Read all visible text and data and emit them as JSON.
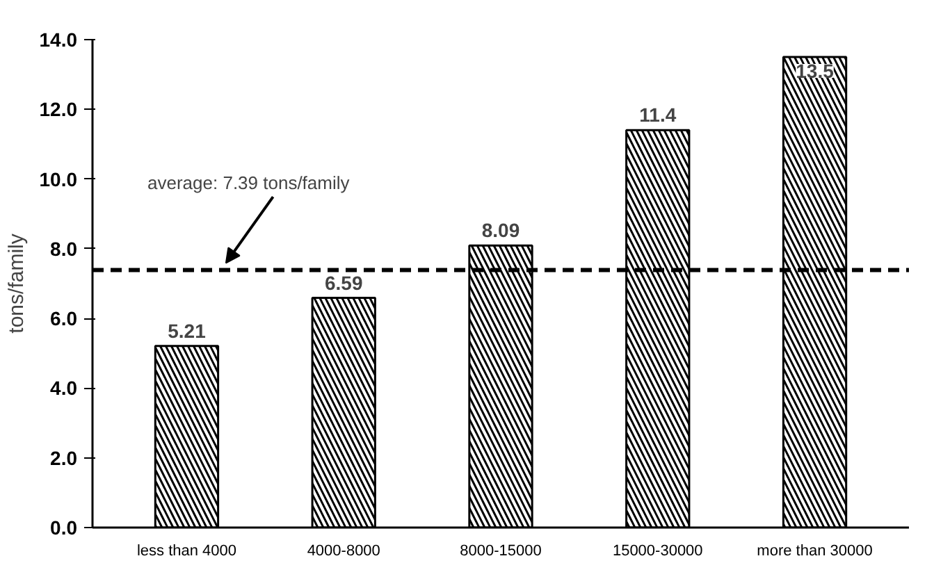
{
  "chart_data": {
    "type": "bar",
    "ylabel": "tons/family",
    "categories": [
      "less than 4000",
      "4000-8000",
      "8000-15000",
      "15000-30000",
      "more than 30000"
    ],
    "values": [
      5.21,
      6.59,
      8.09,
      11.4,
      13.5
    ],
    "color": "#000000",
    "ylim": [
      0,
      14
    ],
    "yticks": [
      {
        "value": 0,
        "label": "0.0"
      },
      {
        "value": 2,
        "label": "2.0"
      },
      {
        "value": 4,
        "label": "4.0"
      },
      {
        "value": 6,
        "label": "6.0"
      },
      {
        "value": 8,
        "label": "8.0"
      },
      {
        "value": 10,
        "label": "10.0"
      },
      {
        "value": 12,
        "label": "12.0"
      },
      {
        "value": 14,
        "label": "14.0"
      }
    ],
    "grid": false,
    "data_labels": true,
    "ref_lines": [
      {
        "axis": "y",
        "value": 7.39,
        "label": "average: 7.39 tons/family",
        "line_style": "dashed",
        "color": "#000000"
      }
    ]
  }
}
